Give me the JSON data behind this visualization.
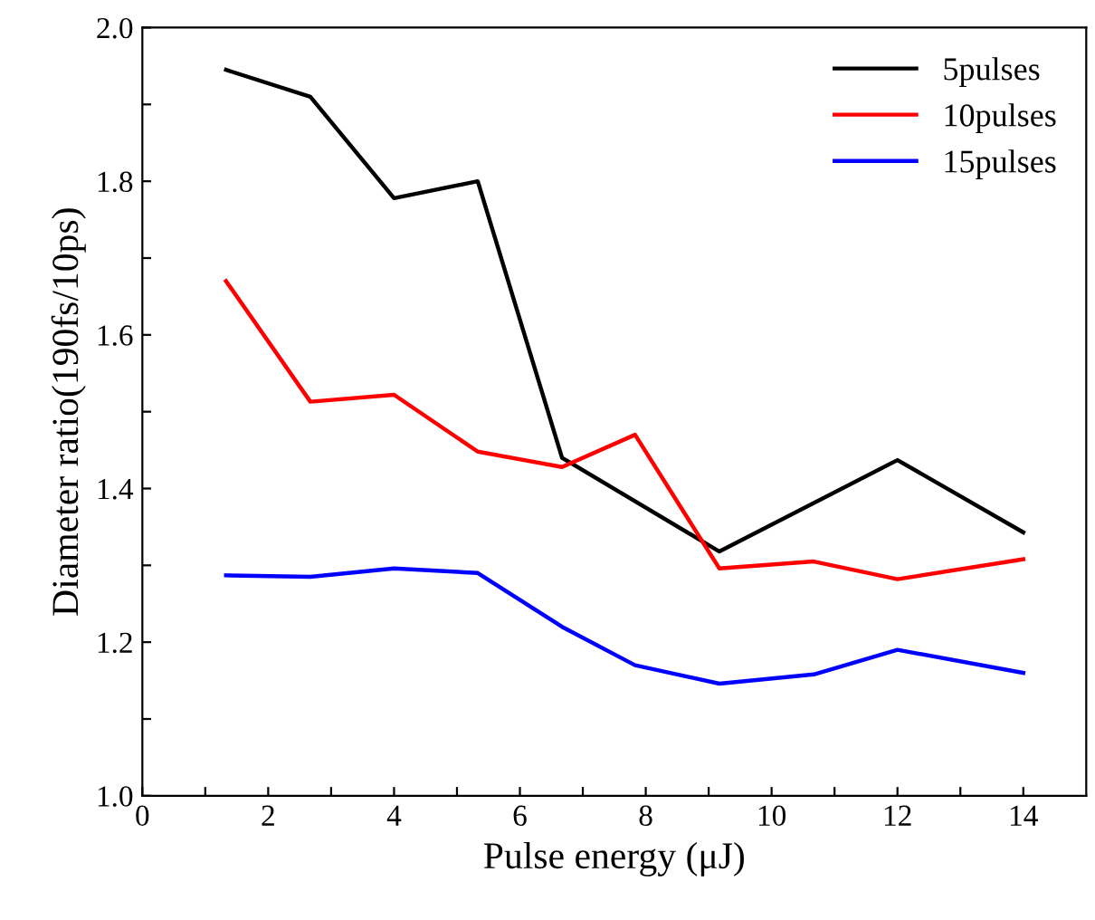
{
  "chart_data": {
    "type": "line",
    "xlabel": "Pulse energy (μJ)",
    "ylabel": "Diameter ratio(190fs/10ps)",
    "xlim": [
      0,
      15
    ],
    "ylim": [
      1.0,
      2.0
    ],
    "xticks": [
      0,
      {
        "value": 1,
        "label": null
      },
      2,
      {
        "value": 3,
        "label": null
      },
      4,
      {
        "value": 5,
        "label": null
      },
      6,
      {
        "value": 7,
        "label": null
      },
      8,
      {
        "value": 9,
        "label": null
      },
      10,
      {
        "value": 11,
        "label": null
      },
      12,
      {
        "value": 13,
        "label": null
      },
      14
    ],
    "yticks": [
      {
        "value": 1.0,
        "label": "1.0"
      },
      {
        "value": 1.1,
        "label": null
      },
      {
        "value": 1.2,
        "label": "1.2"
      },
      {
        "value": 1.3,
        "label": null
      },
      {
        "value": 1.4,
        "label": "1.4"
      },
      {
        "value": 1.5,
        "label": null
      },
      {
        "value": 1.6,
        "label": "1.6"
      },
      {
        "value": 1.7,
        "label": null
      },
      {
        "value": 1.8,
        "label": "1.8"
      },
      {
        "value": 1.9,
        "label": null
      },
      {
        "value": 2.0,
        "label": "2.0"
      }
    ],
    "grid": false,
    "legend": "top right",
    "marker": "none",
    "line_style": "solid",
    "series": [
      {
        "name": "5pulses",
        "color": "#000000",
        "x": [
          1.33,
          2.67,
          4,
          5.33,
          6.67,
          9.17,
          12,
          14
        ],
        "values": [
          1.945,
          1.91,
          1.778,
          1.8,
          1.44,
          1.318,
          1.437,
          1.343
        ]
      },
      {
        "name": "10pulses",
        "color": "#ff0000",
        "x": [
          1.33,
          2.67,
          4,
          5.33,
          6.67,
          7.83,
          9.17,
          10.67,
          12,
          14
        ],
        "values": [
          1.67,
          1.513,
          1.522,
          1.448,
          1.428,
          1.47,
          1.296,
          1.305,
          1.282,
          1.308
        ]
      },
      {
        "name": "15pulses",
        "color": "#0000ff",
        "x": [
          1.33,
          2.67,
          4,
          5.33,
          6.67,
          7.83,
          9.17,
          10.67,
          12,
          14
        ],
        "values": [
          1.287,
          1.285,
          1.296,
          1.29,
          1.22,
          1.17,
          1.146,
          1.158,
          1.19,
          1.16
        ]
      }
    ]
  }
}
